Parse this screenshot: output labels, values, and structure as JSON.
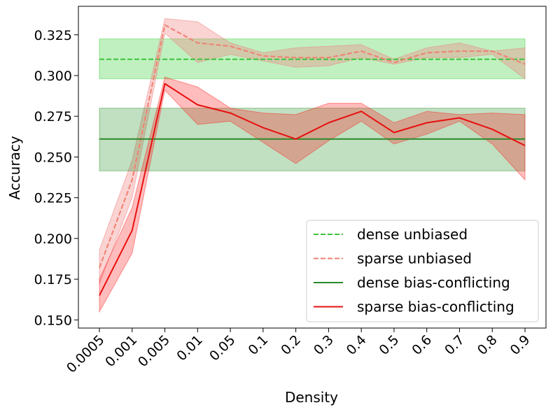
{
  "chart_data": {
    "type": "line",
    "title": "",
    "xlabel": "Density",
    "ylabel": "Accuracy",
    "categories": [
      "0.0005",
      "0.001",
      "0.005",
      "0.01",
      "0.05",
      "0.1",
      "0.2",
      "0.3",
      "0.4",
      "0.5",
      "0.6",
      "0.7",
      "0.8",
      "0.9"
    ],
    "ylim": [
      0.145,
      0.3425
    ],
    "yticks": [
      "0.150",
      "0.175",
      "0.200",
      "0.225",
      "0.250",
      "0.275",
      "0.300",
      "0.325"
    ],
    "grid": false,
    "legend_position": "bottom-right",
    "series": [
      {
        "name": "dense unbiased",
        "color": "#3cc43c",
        "dash": "dashed",
        "values": [
          0.31,
          0.31,
          0.31,
          0.31,
          0.31,
          0.31,
          0.31,
          0.31,
          0.31,
          0.31,
          0.31,
          0.31,
          0.31,
          0.31
        ],
        "lower": [
          0.298,
          0.298,
          0.298,
          0.298,
          0.298,
          0.298,
          0.298,
          0.298,
          0.298,
          0.298,
          0.298,
          0.298,
          0.298,
          0.298
        ],
        "upper": [
          0.3225,
          0.3225,
          0.3225,
          0.3225,
          0.3225,
          0.3225,
          0.3225,
          0.3225,
          0.3225,
          0.3225,
          0.3225,
          0.3225,
          0.3225,
          0.3225
        ],
        "band_color": "#2ecc2e",
        "band_opacity": 0.3
      },
      {
        "name": "sparse unbiased",
        "color": "#f08070",
        "dash": "dashed",
        "values": [
          0.182,
          0.236,
          0.331,
          0.32,
          0.318,
          0.312,
          0.311,
          0.311,
          0.315,
          0.308,
          0.314,
          0.315,
          0.315,
          0.307
        ],
        "lower": [
          0.172,
          0.225,
          0.326,
          0.308,
          0.313,
          0.309,
          0.305,
          0.306,
          0.311,
          0.307,
          0.311,
          0.311,
          0.313,
          0.298
        ],
        "upper": [
          0.193,
          0.248,
          0.335,
          0.333,
          0.32,
          0.314,
          0.317,
          0.318,
          0.319,
          0.31,
          0.317,
          0.32,
          0.315,
          0.317
        ],
        "band_color": "#f08080",
        "band_opacity": 0.35
      },
      {
        "name": "dense bias-conflicting",
        "color": "#2a8a2a",
        "dash": "solid",
        "values": [
          0.261,
          0.261,
          0.261,
          0.261,
          0.261,
          0.261,
          0.261,
          0.261,
          0.261,
          0.261,
          0.261,
          0.261,
          0.261,
          0.261
        ],
        "lower": [
          0.2415,
          0.2415,
          0.2415,
          0.2415,
          0.2415,
          0.2415,
          0.2415,
          0.2415,
          0.2415,
          0.2415,
          0.2415,
          0.2415,
          0.2415,
          0.2415
        ],
        "upper": [
          0.28,
          0.28,
          0.28,
          0.28,
          0.28,
          0.28,
          0.28,
          0.28,
          0.28,
          0.28,
          0.28,
          0.28,
          0.28,
          0.28
        ],
        "band_color": "#228b22",
        "band_opacity": 0.28
      },
      {
        "name": "sparse bias-conflicting",
        "color": "#e81010",
        "dash": "solid",
        "values": [
          0.165,
          0.205,
          0.295,
          0.282,
          0.277,
          0.268,
          0.261,
          0.271,
          0.278,
          0.265,
          0.271,
          0.274,
          0.267,
          0.257
        ],
        "lower": [
          0.155,
          0.191,
          0.291,
          0.27,
          0.272,
          0.259,
          0.246,
          0.26,
          0.272,
          0.258,
          0.264,
          0.272,
          0.258,
          0.236
        ],
        "upper": [
          0.175,
          0.219,
          0.299,
          0.293,
          0.28,
          0.277,
          0.276,
          0.283,
          0.283,
          0.271,
          0.278,
          0.276,
          0.277,
          0.276
        ],
        "band_color": "#ff2020",
        "band_opacity": 0.3
      }
    ]
  }
}
